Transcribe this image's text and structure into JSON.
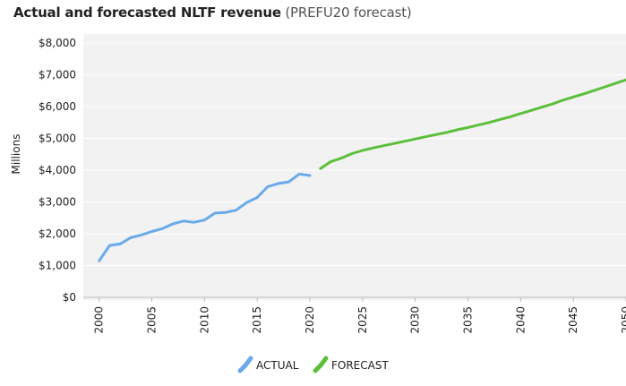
{
  "chart_data": {
    "type": "line",
    "title": "Actual and forecasted NLTF revenue",
    "subtitle": "(PREFU20 forecast)",
    "xlabel": "",
    "ylabel": "Millions",
    "xlim": [
      1998.5,
      2050
    ],
    "ylim": [
      0,
      8000
    ],
    "x_ticks": [
      "2000",
      "2005",
      "2010",
      "2015",
      "2020",
      "2025",
      "2030",
      "2035",
      "2040",
      "2045",
      "2050"
    ],
    "y_ticks": [
      "$0",
      "$1,000",
      "$2,000",
      "$3,000",
      "$4,000",
      "$5,000",
      "$6,000",
      "$7,000",
      "$8,000"
    ],
    "grid": true,
    "legend_position": "bottom-center",
    "series": [
      {
        "name": "ACTUAL",
        "color": "#6aaaea",
        "points": [
          [
            2000,
            1150
          ],
          [
            2001,
            1630
          ],
          [
            2002,
            1680
          ],
          [
            2003,
            1880
          ],
          [
            2004,
            1960
          ],
          [
            2005,
            2070
          ],
          [
            2006,
            2160
          ],
          [
            2007,
            2310
          ],
          [
            2008,
            2400
          ],
          [
            2009,
            2360
          ],
          [
            2010,
            2430
          ],
          [
            2011,
            2650
          ],
          [
            2012,
            2670
          ],
          [
            2013,
            2740
          ],
          [
            2014,
            2980
          ],
          [
            2015,
            3140
          ],
          [
            2016,
            3480
          ],
          [
            2017,
            3580
          ],
          [
            2018,
            3630
          ],
          [
            2019,
            3880
          ],
          [
            2020,
            3830
          ]
        ]
      },
      {
        "name": "FORECAST",
        "color": "#5cbf3a",
        "points": [
          [
            2021,
            4050
          ],
          [
            2022,
            4270
          ],
          [
            2023,
            4380
          ],
          [
            2024,
            4520
          ],
          [
            2025,
            4620
          ],
          [
            2026,
            4700
          ],
          [
            2027,
            4770
          ],
          [
            2028,
            4840
          ],
          [
            2029,
            4910
          ],
          [
            2030,
            4980
          ],
          [
            2031,
            5050
          ],
          [
            2032,
            5120
          ],
          [
            2033,
            5190
          ],
          [
            2034,
            5270
          ],
          [
            2035,
            5340
          ],
          [
            2036,
            5420
          ],
          [
            2037,
            5500
          ],
          [
            2038,
            5590
          ],
          [
            2039,
            5680
          ],
          [
            2040,
            5780
          ],
          [
            2041,
            5880
          ],
          [
            2042,
            5980
          ],
          [
            2043,
            6080
          ],
          [
            2044,
            6200
          ],
          [
            2045,
            6300
          ],
          [
            2046,
            6400
          ],
          [
            2047,
            6510
          ],
          [
            2048,
            6620
          ],
          [
            2049,
            6730
          ],
          [
            2050,
            6840
          ]
        ]
      }
    ]
  }
}
